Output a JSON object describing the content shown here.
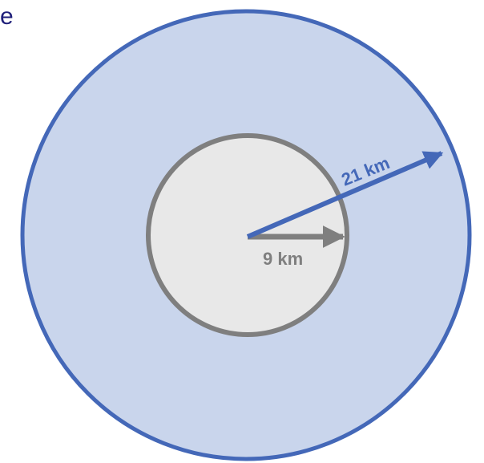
{
  "corner_text": "e",
  "outer_radius_label": "21 km",
  "inner_radius_label": "9 km",
  "colors": {
    "corner_text": "#1f1f7a",
    "outer_fill": "#c9d5ec",
    "outer_stroke": "#4468b8",
    "inner_fill": "#e8e8e8",
    "inner_stroke": "#7f7f7f",
    "outer_arrow": "#4468b8",
    "inner_arrow": "#7f7f7f",
    "outer_label": "#4468b8",
    "inner_label": "#7f7f7f"
  }
}
